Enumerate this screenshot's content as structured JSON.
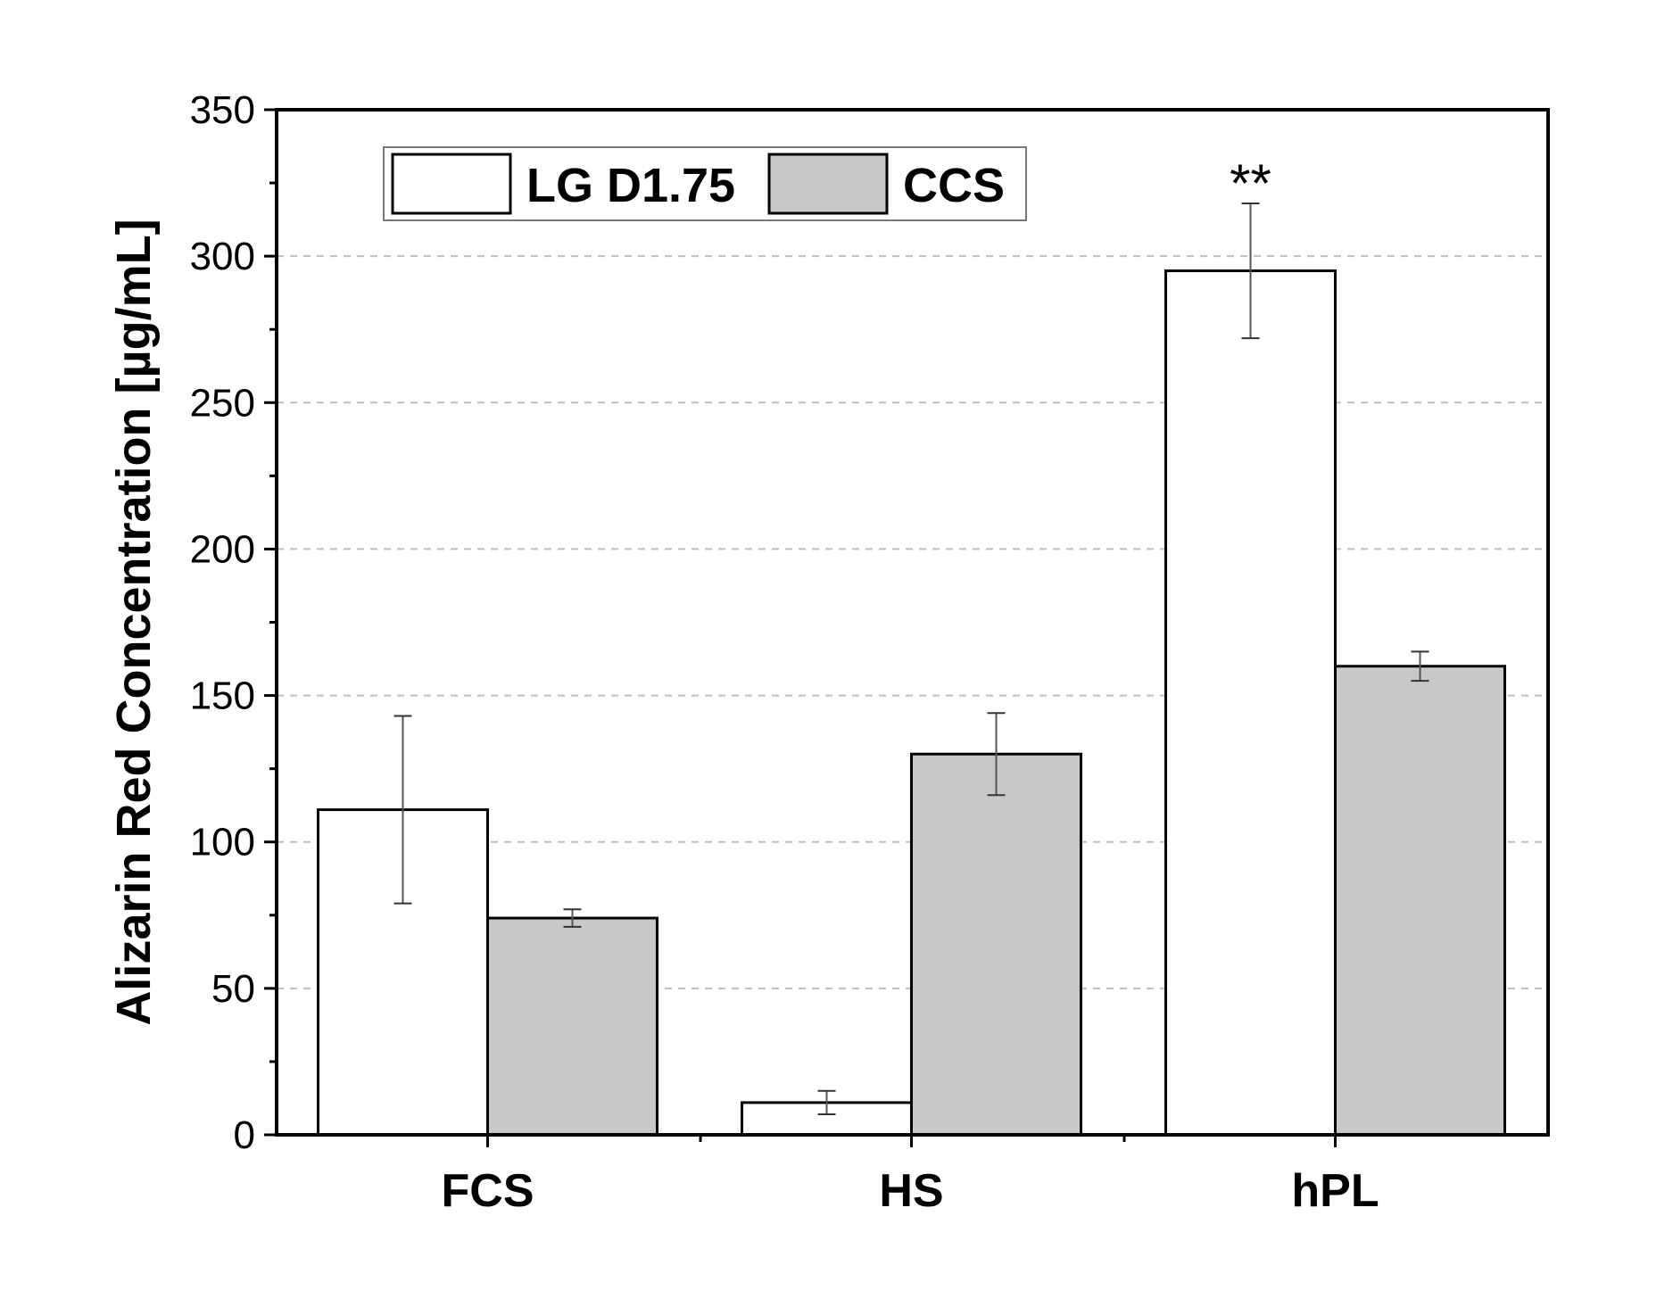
{
  "chart_data": {
    "type": "bar",
    "title": "",
    "xlabel": "",
    "ylabel": "Alizarin Red Concentration [µg/mL]",
    "ylim": [
      0,
      350
    ],
    "yticks": [
      "0",
      "50",
      "100",
      "150",
      "200",
      "250",
      "300",
      "350"
    ],
    "grid": "horizontal dashed",
    "legend_position": "top-left",
    "categories": [
      "FCS",
      "HS",
      "hPL"
    ],
    "series": [
      {
        "name": "LG D1.75",
        "color": "#ffffff",
        "values": [
          111,
          11,
          295
        ],
        "errors": [
          32,
          4,
          23
        ]
      },
      {
        "name": "CCS",
        "color": "#c8c8c8",
        "values": [
          74,
          130,
          160
        ],
        "errors": [
          3,
          14,
          5
        ]
      }
    ],
    "annotations": [
      {
        "category": "hPL",
        "series": "LG D1.75",
        "text": "**"
      }
    ]
  }
}
